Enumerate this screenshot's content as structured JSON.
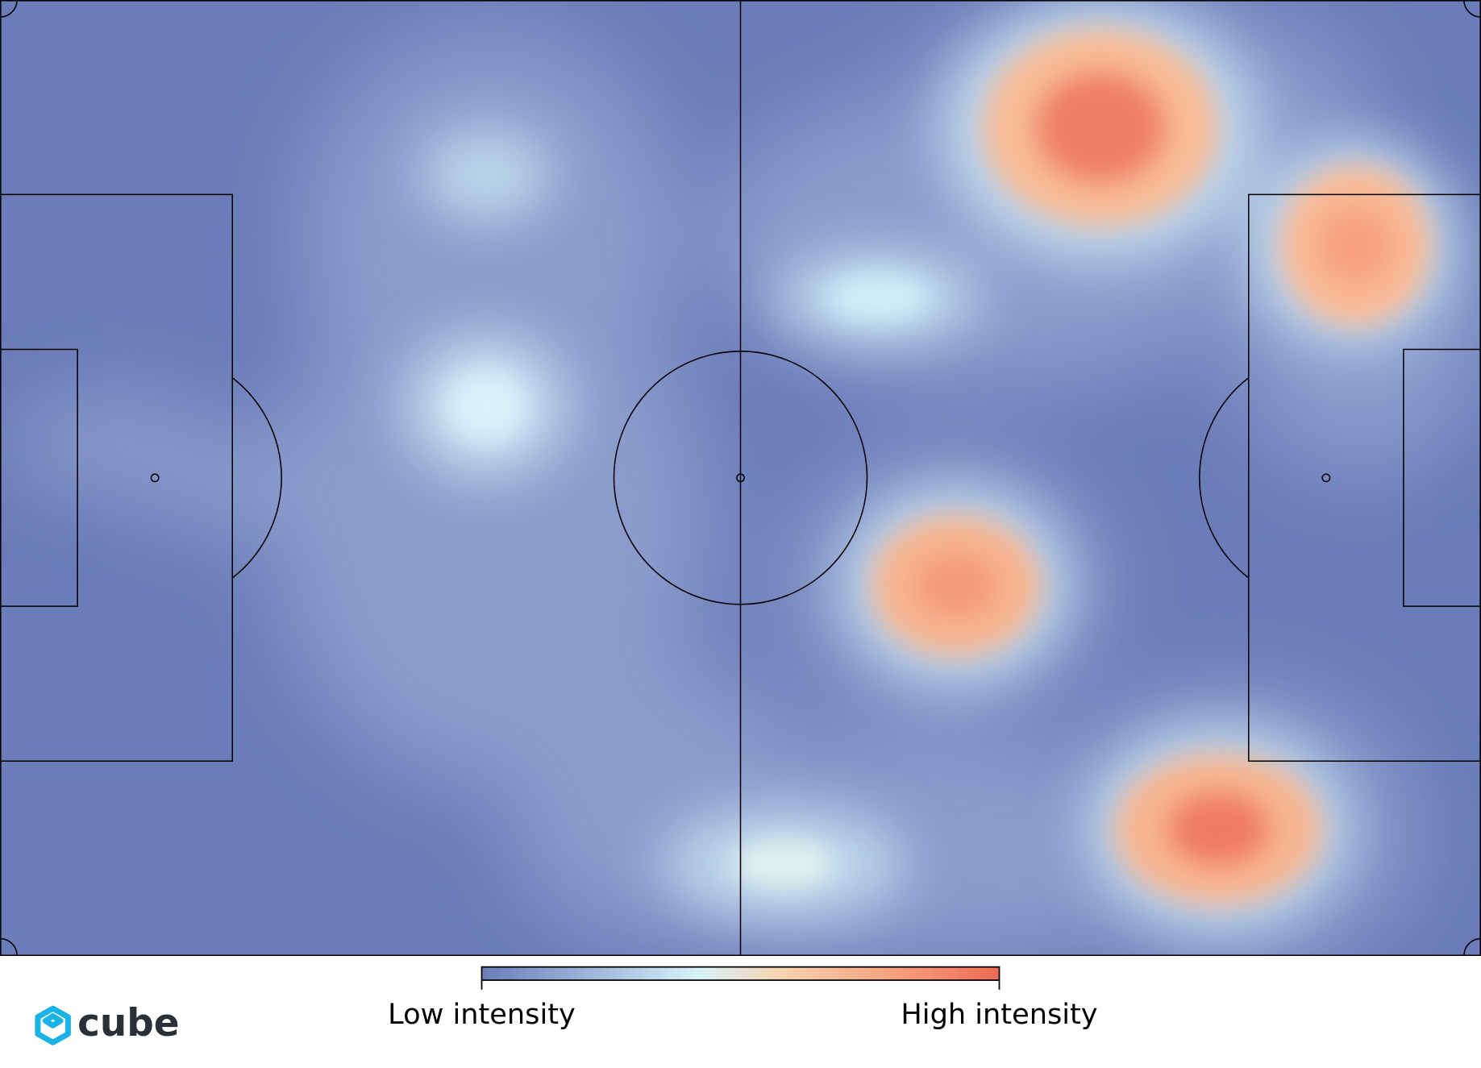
{
  "colorbar": {
    "low_label": "Low intensity",
    "high_label": "High intensity"
  },
  "logo": {
    "text": "cube"
  }
}
